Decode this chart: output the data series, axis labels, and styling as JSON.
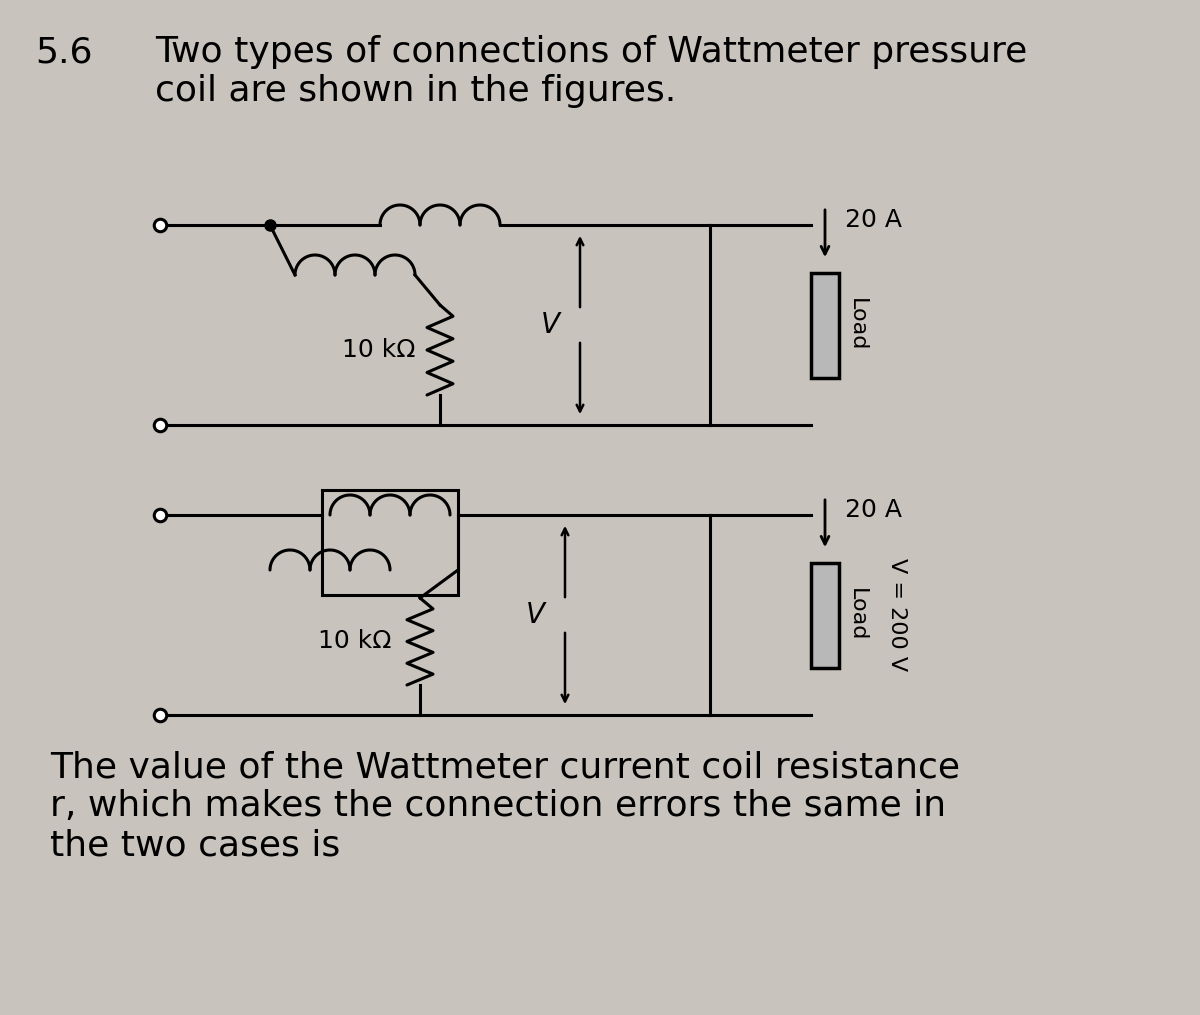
{
  "bg_color": "#c8c3bc",
  "title_number": "5.6",
  "title_text": "Two types of connections of Wattmeter pressure\ncoil are shown in the figures.",
  "title_fontsize": 26,
  "body_text": "The value of the Wattmeter current coil resistance\nr, which makes the connection errors the same in\nthe two cases is",
  "body_fontsize": 26,
  "circuit1": {
    "current_label": "20 A",
    "voltage_label": "V",
    "resistor_label": "10 kΩ",
    "load_label": "Load"
  },
  "circuit2": {
    "current_label": "20 A",
    "voltage_label": "V",
    "resistor_label": "10 kΩ",
    "load_label": "Load",
    "voltage_value": "V = 200 V"
  }
}
